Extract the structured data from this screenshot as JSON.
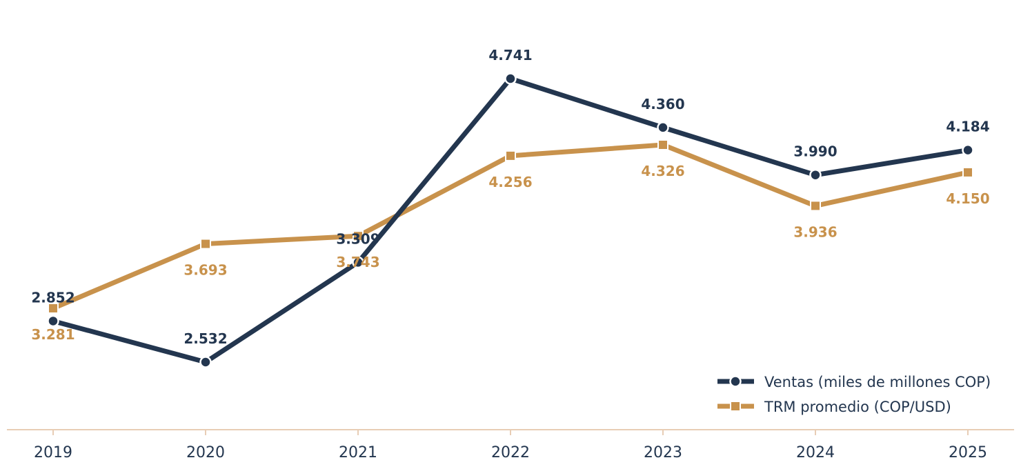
{
  "chart_data": {
    "type": "line",
    "title": "",
    "xlabel": "",
    "ylabel": "",
    "x": [
      "2019",
      "2020",
      "2021",
      "2022",
      "2023",
      "2024",
      "2025"
    ],
    "grid": false,
    "legend_position": "bottom-right",
    "series": [
      {
        "name": "Ventas (miles de millones COP)",
        "values": [
          2852,
          2532,
          3309,
          4741,
          4360,
          3990,
          4184
        ],
        "labels": [
          "2.852",
          "2.532",
          "3.309",
          "4.741",
          "4.360",
          "3.990",
          "4.184"
        ],
        "color": "#23364f",
        "marker": "circle"
      },
      {
        "name": "TRM promedio (COP/USD)",
        "values": [
          3281,
          3693,
          3743,
          4256,
          4326,
          3936,
          4150
        ],
        "labels": [
          "3.281",
          "3.693",
          "3.743",
          "4.256",
          "4.326",
          "3.936",
          "4.150"
        ],
        "color": "#c8924c",
        "marker": "square"
      }
    ],
    "axis_color": "#e8cdb5"
  }
}
